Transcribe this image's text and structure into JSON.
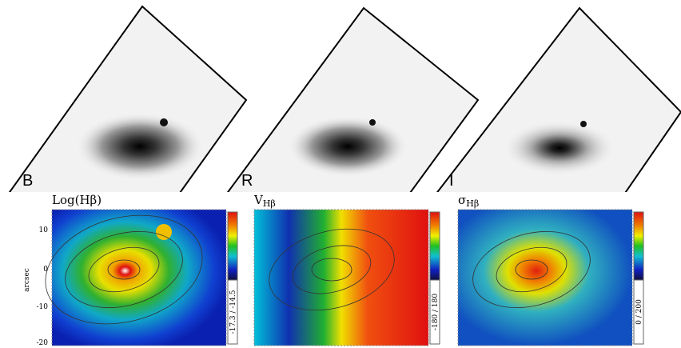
{
  "top_panels": [
    {
      "label": "B"
    },
    {
      "label": "R"
    },
    {
      "label": "I"
    }
  ],
  "maps": [
    {
      "title": "Log(Hβ)",
      "colorbar_label": "-17.3 / -14.5"
    },
    {
      "title": "V",
      "title_sub": "Hβ",
      "colorbar_label": "-180 / 180"
    },
    {
      "title": "σ",
      "title_sub": "Hβ",
      "colorbar_label": "0 / 200"
    }
  ],
  "y_axis": {
    "label": "arcsec",
    "ticks": [
      "10",
      "0",
      "-10",
      "-20"
    ]
  }
}
